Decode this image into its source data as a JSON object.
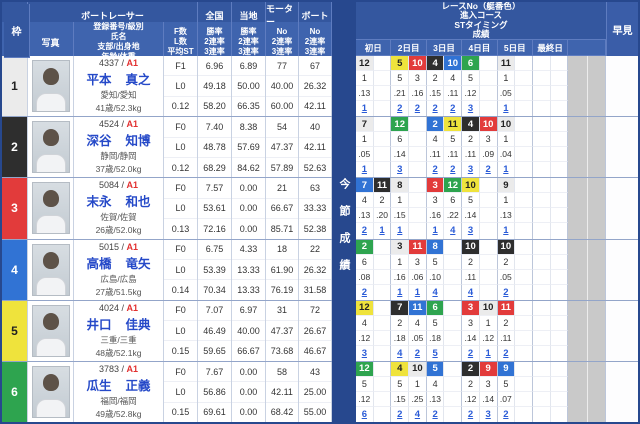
{
  "strip_label": "今節成績",
  "header": {
    "frame": "枠",
    "racer_group": "ボートレーサー",
    "photo": "写真",
    "info_lines": [
      "登録番号/級別",
      "氏名",
      "支部/出身地",
      "年齢/体重"
    ],
    "fl_lines": [
      "F数",
      "L数",
      "平均ST"
    ],
    "stat_groups": [
      {
        "label": "全国",
        "sub": [
          "勝率",
          "2連率",
          "3連率"
        ]
      },
      {
        "label": "当地",
        "sub": [
          "勝率",
          "2連率",
          "3連率"
        ]
      },
      {
        "label": "モーター",
        "sub": [
          "No",
          "2連率",
          "3連率"
        ]
      },
      {
        "label": "ボート",
        "sub": [
          "No",
          "2連率",
          "3連率"
        ]
      }
    ],
    "race_group_lines": [
      "レースNo（艇番色）",
      "進入コース",
      "STタイミング",
      "成績"
    ],
    "day_labels": [
      "初日",
      "2日目",
      "3日目",
      "4日目",
      "5日目",
      "最終日",
      ""
    ],
    "hayami": "早見"
  },
  "colors": {
    "1": {
      "bg": "#ebebeb",
      "fg": "#222222"
    },
    "2": {
      "bg": "#2e2e2e",
      "fg": "#ffffff"
    },
    "3": {
      "bg": "#e23b3b",
      "fg": "#ffffff"
    },
    "4": {
      "bg": "#3173d4",
      "fg": "#ffffff"
    },
    "5": {
      "bg": "#efe33c",
      "fg": "#222222"
    },
    "6": {
      "bg": "#2ea44f",
      "fg": "#ffffff"
    },
    "accent_header": "#34579f",
    "link": "#2a5bd7",
    "class_red": "#e23030"
  },
  "racers": [
    {
      "frame": "1",
      "reg": "4337",
      "class": "A1",
      "name_last": "平本",
      "name_first": "真之",
      "branch": "愛知/愛知",
      "age_weight": "41歳/52.3kg",
      "fl": [
        "F1",
        "L0",
        "0.12"
      ],
      "zenkoku": [
        "6.96",
        "49.18",
        "58.20"
      ],
      "touchi": [
        "6.89",
        "50.00",
        "66.35"
      ],
      "motor": [
        "77",
        "40.00",
        "60.00"
      ],
      "boat": [
        "67",
        "26.32",
        "42.11"
      ],
      "days": [
        [
          {
            "no": "12",
            "boat": "1",
            "course": "1",
            "st": ".13",
            "result": "1"
          }
        ],
        [
          {
            "no": "5",
            "boat": "5",
            "course": "5",
            "st": ".21",
            "result": "2"
          },
          {
            "no": "10",
            "boat": "3",
            "course": "3",
            "st": ".16",
            "result": "2"
          }
        ],
        [
          {
            "no": "4",
            "boat": "2",
            "course": "2",
            "st": ".15",
            "result": "2"
          },
          {
            "no": "10",
            "boat": "4",
            "course": "4",
            "st": ".11",
            "result": "2"
          }
        ],
        [
          {
            "no": "6",
            "boat": "6",
            "course": "5",
            "st": ".12",
            "result": "3"
          }
        ],
        [
          {
            "no": "11",
            "boat": "1",
            "course": "1",
            "st": ".05",
            "result": "1"
          }
        ],
        []
      ]
    },
    {
      "frame": "2",
      "reg": "4524",
      "class": "A1",
      "name_last": "深谷",
      "name_first": "知博",
      "branch": "静岡/静岡",
      "age_weight": "37歳/52.0kg",
      "fl": [
        "F0",
        "L0",
        "0.12"
      ],
      "zenkoku": [
        "7.40",
        "48.78",
        "68.29"
      ],
      "touchi": [
        "8.38",
        "57.69",
        "84.62"
      ],
      "motor": [
        "54",
        "47.37",
        "57.89"
      ],
      "boat": [
        "40",
        "42.11",
        "52.63"
      ],
      "days": [
        [
          {
            "no": "7",
            "boat": "1",
            "course": "1",
            "st": ".05",
            "result": "1"
          }
        ],
        [
          {
            "no": "12",
            "boat": "6",
            "course": "6",
            "st": ".14",
            "result": "3"
          }
        ],
        [
          {
            "no": "2",
            "boat": "4",
            "course": "4",
            "st": ".11",
            "result": "2"
          },
          {
            "no": "11",
            "boat": "5",
            "course": "5",
            "st": ".11",
            "result": "2"
          }
        ],
        [
          {
            "no": "4",
            "boat": "2",
            "course": "2",
            "st": ".11",
            "result": "3"
          },
          {
            "no": "10",
            "boat": "3",
            "course": "3",
            "st": ".09",
            "result": "2"
          }
        ],
        [
          {
            "no": "10",
            "boat": "1",
            "course": "1",
            "st": ".04",
            "result": "1"
          }
        ],
        []
      ]
    },
    {
      "frame": "3",
      "reg": "5084",
      "class": "A1",
      "name_last": "末永",
      "name_first": "和也",
      "branch": "佐賀/佐賀",
      "age_weight": "26歳/52.0kg",
      "fl": [
        "F0",
        "L0",
        "0.13"
      ],
      "zenkoku": [
        "7.57",
        "53.61",
        "72.16"
      ],
      "touchi": [
        "0.00",
        "0.00",
        "0.00"
      ],
      "motor": [
        "21",
        "66.67",
        "85.71"
      ],
      "boat": [
        "63",
        "33.33",
        "52.38"
      ],
      "days": [
        [
          {
            "no": "7",
            "boat": "4",
            "course": "4",
            "st": ".13",
            "result": "2"
          },
          {
            "no": "11",
            "boat": "2",
            "course": "2",
            "st": ".20",
            "result": "1"
          }
        ],
        [
          {
            "no": "8",
            "boat": "1",
            "course": "1",
            "st": ".15",
            "result": "1"
          }
        ],
        [
          {
            "no": "3",
            "boat": "3",
            "course": "3",
            "st": ".16",
            "result": "1"
          },
          {
            "no": "12",
            "boat": "6",
            "course": "6",
            "st": ".22",
            "result": "4"
          }
        ],
        [
          {
            "no": "10",
            "boat": "5",
            "course": "5",
            "st": ".14",
            "result": "3"
          }
        ],
        [
          {
            "no": "9",
            "boat": "1",
            "course": "1",
            "st": ".13",
            "result": "1"
          }
        ],
        []
      ]
    },
    {
      "frame": "4",
      "reg": "5015",
      "class": "A1",
      "name_last": "高橋",
      "name_first": "竜矢",
      "branch": "広島/広島",
      "age_weight": "27歳/51.5kg",
      "fl": [
        "F0",
        "L0",
        "0.14"
      ],
      "zenkoku": [
        "6.75",
        "53.39",
        "70.34"
      ],
      "touchi": [
        "4.33",
        "13.33",
        "13.33"
      ],
      "motor": [
        "18",
        "61.90",
        "76.19"
      ],
      "boat": [
        "22",
        "26.32",
        "31.58"
      ],
      "days": [
        [
          {
            "no": "2",
            "boat": "6",
            "course": "6",
            "st": ".08",
            "result": "2"
          }
        ],
        [
          {
            "no": "3",
            "boat": "1",
            "course": "1",
            "st": ".16",
            "result": "1"
          },
          {
            "no": "11",
            "boat": "3",
            "course": "3",
            "st": ".06",
            "result": "1"
          }
        ],
        [
          {
            "no": "8",
            "boat": "4",
            "course": "5",
            "st": ".10",
            "result": "4"
          }
        ],
        [
          {
            "no": "10",
            "boat": "2",
            "course": "2",
            "st": ".11",
            "result": "4"
          }
        ],
        [
          {
            "no": "10",
            "boat": "2",
            "course": "2",
            "st": ".05",
            "result": "2"
          }
        ],
        []
      ]
    },
    {
      "frame": "5",
      "reg": "4024",
      "class": "A1",
      "name_last": "井口",
      "name_first": "佳典",
      "branch": "三重/三重",
      "age_weight": "48歳/52.1kg",
      "fl": [
        "F0",
        "L0",
        "0.15"
      ],
      "zenkoku": [
        "7.07",
        "46.49",
        "59.65"
      ],
      "touchi": [
        "6.97",
        "40.00",
        "66.67"
      ],
      "motor": [
        "31",
        "47.37",
        "73.68"
      ],
      "boat": [
        "72",
        "26.67",
        "46.67"
      ],
      "days": [
        [
          {
            "no": "12",
            "boat": "5",
            "course": "4",
            "st": ".12",
            "result": "3"
          }
        ],
        [
          {
            "no": "7",
            "boat": "2",
            "course": "2",
            "st": ".18",
            "result": "4"
          },
          {
            "no": "11",
            "boat": "4",
            "course": "4",
            "st": ".05",
            "result": "2"
          }
        ],
        [
          {
            "no": "6",
            "boat": "6",
            "course": "5",
            "st": ".18",
            "result": "5"
          }
        ],
        [
          {
            "no": "3",
            "boat": "3",
            "course": "3",
            "st": ".14",
            "result": "2"
          },
          {
            "no": "10",
            "boat": "1",
            "course": "1",
            "st": ".12",
            "result": "1"
          }
        ],
        [
          {
            "no": "11",
            "boat": "3",
            "course": "2",
            "st": ".11",
            "result": "2"
          }
        ],
        []
      ]
    },
    {
      "frame": "6",
      "reg": "3783",
      "class": "A1",
      "name_last": "瓜生",
      "name_first": "正義",
      "branch": "福岡/福岡",
      "age_weight": "49歳/52.8kg",
      "fl": [
        "F0",
        "L0",
        "0.15"
      ],
      "zenkoku": [
        "7.67",
        "56.86",
        "69.61"
      ],
      "touchi": [
        "0.00",
        "0.00",
        "0.00"
      ],
      "motor": [
        "58",
        "42.11",
        "68.42"
      ],
      "boat": [
        "43",
        "25.00",
        "55.00"
      ],
      "days": [
        [
          {
            "no": "12",
            "boat": "6",
            "course": "5",
            "st": ".12",
            "result": "6"
          }
        ],
        [
          {
            "no": "4",
            "boat": "5",
            "course": "5",
            "st": ".15",
            "result": "2"
          },
          {
            "no": "10",
            "boat": "1",
            "course": "1",
            "st": ".25",
            "result": "4"
          }
        ],
        [
          {
            "no": "5",
            "boat": "4",
            "course": "4",
            "st": ".13",
            "result": "2"
          }
        ],
        [
          {
            "no": "2",
            "boat": "2",
            "course": "2",
            "st": ".12",
            "result": "2"
          },
          {
            "no": "9",
            "boat": "3",
            "course": "3",
            "st": ".14",
            "result": "3"
          }
        ],
        [
          {
            "no": "9",
            "boat": "4",
            "course": "5",
            "st": ".07",
            "result": "2"
          }
        ],
        []
      ]
    }
  ]
}
